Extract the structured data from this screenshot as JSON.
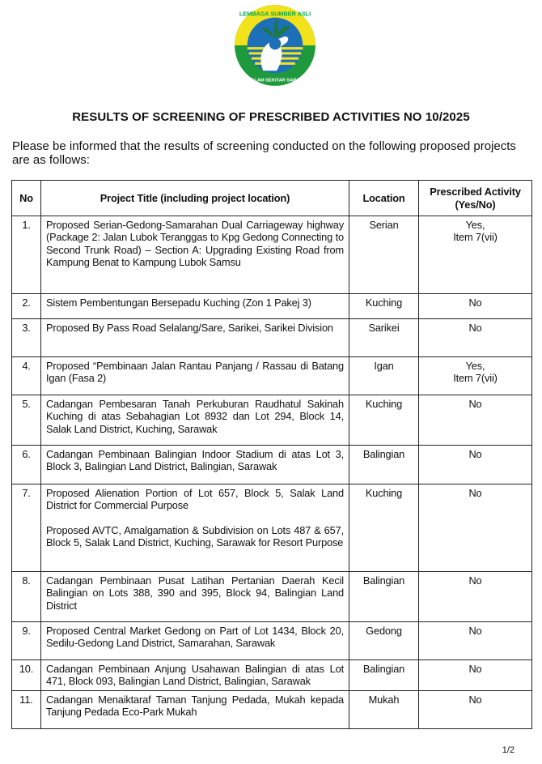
{
  "logo": {
    "top_text": "LEMBAGA SUMBER ASLI",
    "bottom_text": "DAN ALAM SEKITAR SARAWAK",
    "colors": {
      "yellow": "#f2e21b",
      "green": "#1e9a3c",
      "blue": "#1d6fb8"
    }
  },
  "title": "RESULTS OF SCREENING OF PRESCRIBED ACTIVITIES NO  10/2025",
  "intro": "Please be informed that the results of screening conducted on the following proposed projects are as follows:",
  "table": {
    "headers": {
      "no": "No",
      "title": "Project Title (including project location)",
      "location": "Location",
      "activity": "Prescribed Activity (Yes/No)"
    },
    "rows": [
      {
        "no": "1.",
        "title": [
          "Proposed Serian-Gedong-Samarahan Dual Carriageway highway (Package 2: Jalan Lubok Teranggas to Kpg Gedong Connecting to Second Trunk Road) – Section A: Upgrading Existing Road from Kampung Benat to Kampung Lubok Samsu"
        ],
        "location": "Serian",
        "activity": [
          "Yes,",
          "Item 7(vii)"
        ]
      },
      {
        "no": "2.",
        "title": [
          "Sistem Pembentungan Bersepadu Kuching (Zon 1 Pakej 3)"
        ],
        "location": "Kuching",
        "activity": [
          "No"
        ]
      },
      {
        "no": "3.",
        "title": [
          "Proposed By Pass Road Selalang/Sare, Sarikei, Sarikei Division"
        ],
        "location": "Sarikei",
        "activity": [
          "No"
        ]
      },
      {
        "no": "4.",
        "title": [
          "Proposed “Pembinaan Jalan Rantau Panjang / Rassau di Batang Igan (Fasa 2)"
        ],
        "location": "Igan",
        "activity": [
          "Yes,",
          "Item 7(vii)"
        ]
      },
      {
        "no": "5.",
        "title": [
          "Cadangan Pembesaran Tanah Perkuburan Raudhatul Sakinah Kuching di atas Sebahagian Lot 8932 dan Lot 294, Block 14, Salak Land District, Kuching, Sarawak"
        ],
        "location": "Kuching",
        "activity": [
          "No"
        ]
      },
      {
        "no": "6.",
        "title": [
          "Cadangan Pembinaan Balingian Indoor Stadium di atas Lot 3, Block 3, Balingian Land District, Balingian, Sarawak"
        ],
        "location": "Balingian",
        "activity": [
          "No"
        ]
      },
      {
        "no": "7.",
        "title": [
          "Proposed Alienation Portion of Lot 657, Block 5, Salak Land District for Commercial Purpose",
          "Proposed AVTC, Amalgamation & Subdivision on Lots 487 & 657, Block 5, Salak Land District, Kuching, Sarawak for Resort Purpose"
        ],
        "location": "Kuching",
        "activity": [
          "No"
        ]
      },
      {
        "no": "8.",
        "title": [
          "Cadangan Pembinaan Pusat Latihan Pertanian Daerah Kecil Balingian on Lots 388, 390 and 395, Block 94, Balingian Land District"
        ],
        "location": "Balingian",
        "activity": [
          "No"
        ]
      },
      {
        "no": "9.",
        "title": [
          "Proposed Central Market Gedong on Part of Lot 1434, Block 20, Sedilu-Gedong Land District, Samarahan, Sarawak"
        ],
        "location": "Gedong",
        "activity": [
          "No"
        ]
      },
      {
        "no": "10.",
        "title": [
          "Cadangan Pembinaan Anjung Usahawan Balingian di atas Lot 471, Block 093, Balingian Land District, Balingian, Sarawak"
        ],
        "location": "Balingian",
        "activity": [
          "No"
        ]
      },
      {
        "no": "11.",
        "title": [
          "Cadangan Menaiktaraf Taman Tanjung Pedada, Mukah kepada Tanjung Pedada Eco-Park Mukah"
        ],
        "location": "Mukah",
        "activity": [
          "No"
        ]
      }
    ]
  },
  "page_number": "1/2"
}
